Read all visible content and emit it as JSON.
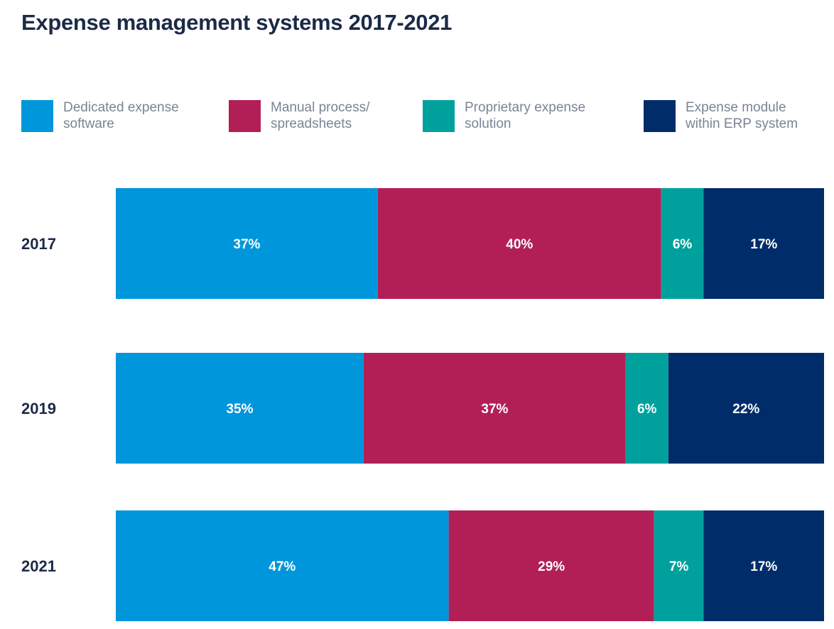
{
  "chart_data": {
    "type": "bar",
    "orientation": "horizontal",
    "stacked": true,
    "normalized": true,
    "title": "Expense management systems 2017-2021",
    "xlabel": "",
    "ylabel": "",
    "xlim": [
      0,
      100
    ],
    "grid": false,
    "legend_position": "top",
    "categories": [
      "2017",
      "2019",
      "2021"
    ],
    "series": [
      {
        "name": "Dedicated expense\nsoftware",
        "color": "#0096db",
        "values": [
          37,
          35,
          47
        ],
        "labels": [
          "37%",
          "35%",
          "47%"
        ]
      },
      {
        "name": "Manual process/\nspreadsheets",
        "color": "#b21f57",
        "values": [
          40,
          37,
          29
        ],
        "labels": [
          "40%",
          "37%",
          "29%"
        ]
      },
      {
        "name": "Proprietary expense\nsolution",
        "color": "#00a19d",
        "values": [
          6,
          6,
          7
        ],
        "labels": [
          "6%",
          "6%",
          "7%"
        ]
      },
      {
        "name": "Expense module\nwithin ERP system",
        "color": "#002d6a",
        "values": [
          17,
          22,
          17
        ],
        "labels": [
          "17%",
          "22%",
          "17%"
        ]
      }
    ]
  }
}
